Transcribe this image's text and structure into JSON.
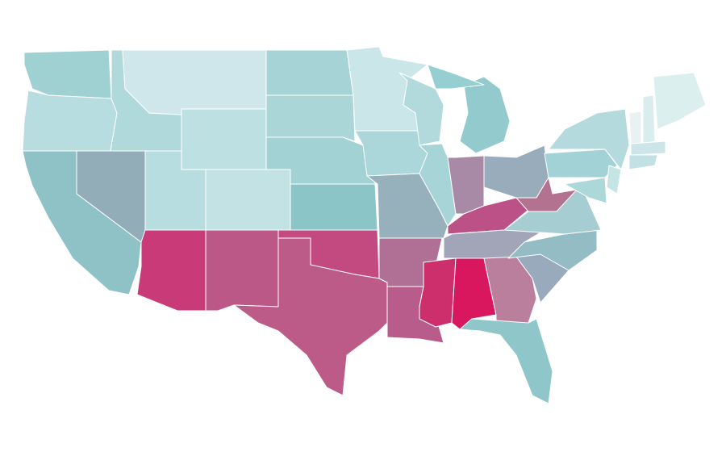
{
  "map": {
    "regions": [
      {
        "color": "#9fd0d2"
      },
      {
        "color": "#b8dde0"
      },
      {
        "color": "#8ec2c6"
      },
      {
        "color": "#93adb8"
      },
      {
        "color": "#b0d9dc"
      },
      {
        "color": "#cfe7ea"
      },
      {
        "color": "#bde0e2"
      },
      {
        "color": "#b8dde0"
      },
      {
        "color": "#c2e2e4"
      },
      {
        "color": "#c83a78"
      },
      {
        "color": "#bc5888"
      },
      {
        "color": "#a6d3d5"
      },
      {
        "color": "#aad6d8"
      },
      {
        "color": "#a3d2d4"
      },
      {
        "color": "#8cc5c8"
      },
      {
        "color": "#c24a80"
      },
      {
        "color": "#bc5b88"
      },
      {
        "color": "#cbe6e8"
      },
      {
        "color": "#acd7da"
      },
      {
        "color": "#96b1bc"
      },
      {
        "color": "#b07095"
      },
      {
        "color": "#b85d8b"
      },
      {
        "color": "#b2dadc"
      },
      {
        "color": "#a6d4d7"
      },
      {
        "color": "#92cacd"
      },
      {
        "color": "#96cfd1"
      },
      {
        "color": "#a98aa6"
      },
      {
        "color": "#98acbb"
      },
      {
        "color": "#bb5186"
      },
      {
        "color": "#a2a5b8"
      },
      {
        "color": "#cd2e6c"
      },
      {
        "color": "#d8175f"
      },
      {
        "color": "#ba7f9d"
      },
      {
        "color": "#8fc6c9"
      },
      {
        "color": "#98aabb"
      },
      {
        "color": "#93bcc4"
      },
      {
        "color": "#a6cdd2"
      },
      {
        "color": "#b3728f"
      },
      {
        "color": "#a2d2d5"
      },
      {
        "color": "#b4dadd"
      },
      {
        "color": "#c5e4e6"
      },
      {
        "color": "#acd8da"
      },
      {
        "color": "#e9f1f3"
      },
      {
        "color": "#d9edee"
      },
      {
        "color": "#dcefef"
      },
      {
        "color": "#cbe5e8"
      },
      {
        "color": "#c2e1e4"
      }
    ]
  }
}
